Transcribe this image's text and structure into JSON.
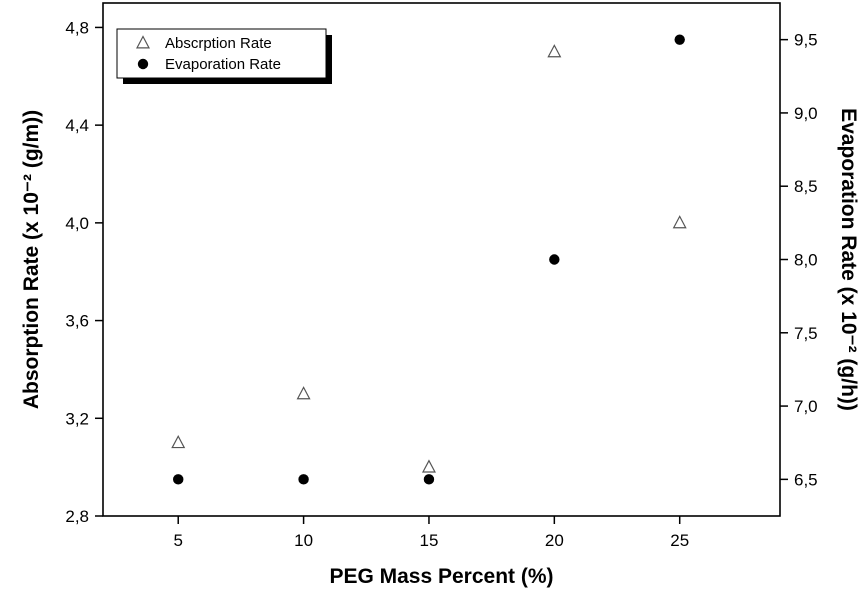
{
  "chart_data": {
    "type": "scatter",
    "xlabel": "PEG Mass Percent (%)",
    "ylabel_left": "Absorption Rate (x 10⁻² (g/m))",
    "ylabel_right": "Evaporation Rate (x 10⁻² (g/h))",
    "xlim": [
      2,
      29
    ],
    "ylim_left": [
      2.8,
      4.9
    ],
    "ylim_right": [
      6.25,
      9.75
    ],
    "x_ticks": [
      5,
      10,
      15,
      20,
      25
    ],
    "y_left_ticks": [
      "2,8",
      "3,2",
      "3,6",
      "4,0",
      "4,4",
      "4,8"
    ],
    "y_left_tick_values": [
      2.8,
      3.2,
      3.6,
      4.0,
      4.4,
      4.8
    ],
    "y_right_ticks": [
      "6,5",
      "7,0",
      "7,5",
      "8,0",
      "8,5",
      "9,0",
      "9,5"
    ],
    "y_right_tick_values": [
      6.5,
      7.0,
      7.5,
      8.0,
      8.5,
      9.0,
      9.5
    ],
    "grid": false,
    "legend_position": "top-left",
    "series": [
      {
        "name": "Abscrption Rate",
        "axis": "left",
        "marker": "open-triangle",
        "x": [
          5,
          10,
          15,
          20,
          25
        ],
        "y": [
          3.1,
          3.3,
          3.0,
          4.7,
          4.0
        ]
      },
      {
        "name": "Evaporation Rate",
        "axis": "right",
        "marker": "filled-circle",
        "x": [
          5,
          10,
          15,
          20,
          25
        ],
        "y": [
          6.5,
          6.5,
          6.5,
          8.0,
          9.5
        ]
      }
    ]
  }
}
